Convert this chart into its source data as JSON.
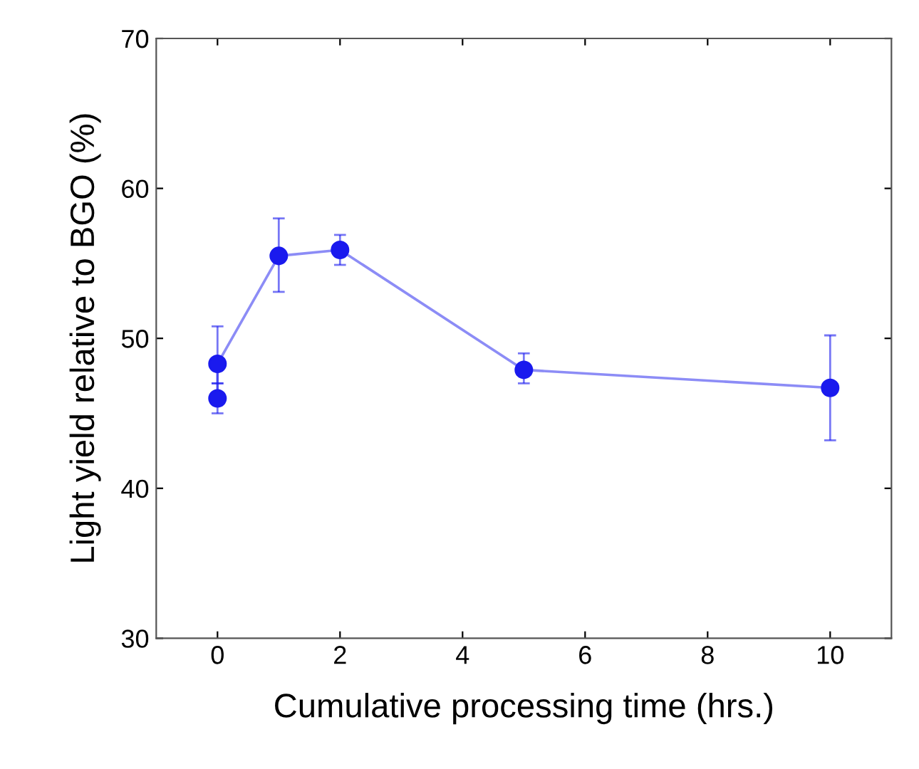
{
  "chart_data": {
    "type": "line",
    "xlabel": "Cumulative processing time (hrs.)",
    "ylabel": "Light yield relative to BGO (%)",
    "x": [
      0,
      0,
      1,
      2,
      5,
      10
    ],
    "series": [
      {
        "color": "#1a1aee",
        "values": [
          46.0,
          48.3,
          55.5,
          55.9,
          47.9,
          46.7
        ],
        "errors": [
          [
            45.0,
            47.0
          ],
          [
            47.0,
            50.8
          ],
          [
            53.1,
            58.0
          ],
          [
            54.9,
            56.9
          ],
          [
            47.0,
            49.0
          ],
          [
            43.2,
            50.2
          ]
        ]
      }
    ],
    "xlim": [
      -1,
      11
    ],
    "xticks": [
      0,
      2,
      4,
      6,
      8,
      10
    ],
    "ylim": [
      30,
      70
    ],
    "yticks": [
      30,
      40,
      50,
      60,
      70
    ],
    "marker": "circle",
    "line_style": "solid",
    "grid": false
  }
}
